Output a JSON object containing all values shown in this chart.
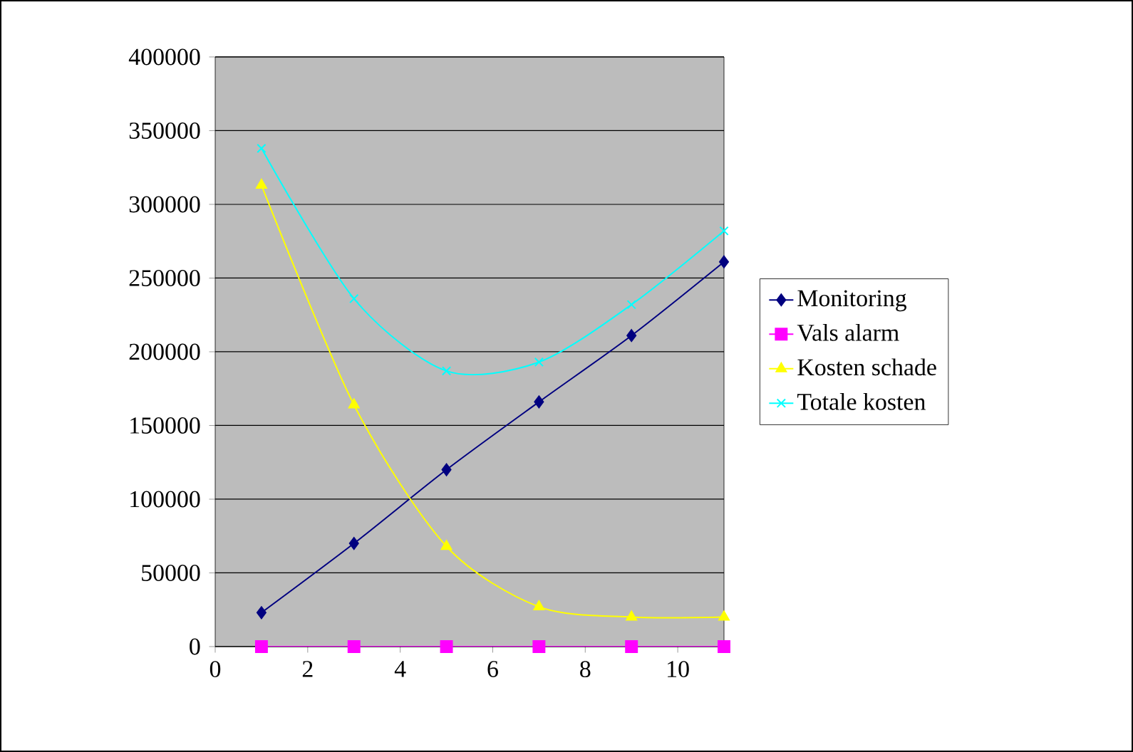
{
  "chart_data": {
    "type": "line",
    "x": [
      1,
      3,
      5,
      7,
      9,
      11
    ],
    "series": [
      {
        "name": "Monitoring",
        "color": "#000080",
        "marker": "diamond",
        "values": [
          23000,
          70000,
          120000,
          166000,
          211000,
          261000
        ]
      },
      {
        "name": "Vals alarm",
        "color": "#ff00ff",
        "marker": "square",
        "values": [
          0,
          0,
          0,
          0,
          0,
          0
        ]
      },
      {
        "name": "Kosten schade",
        "color": "#ffff00",
        "marker": "triangle",
        "values": [
          313000,
          164000,
          68000,
          27000,
          20000,
          20000
        ]
      },
      {
        "name": "Totale kosten",
        "color": "#00ffff",
        "marker": "cross",
        "values": [
          338000,
          236000,
          187000,
          193000,
          232000,
          282000
        ]
      }
    ],
    "xlim": [
      0,
      11
    ],
    "xticks": [
      0,
      2,
      4,
      6,
      8,
      10
    ],
    "ylim": [
      0,
      400000
    ],
    "yticks": [
      0,
      50000,
      100000,
      150000,
      200000,
      250000,
      300000,
      350000,
      400000
    ],
    "grid": "y",
    "legend": "right"
  }
}
